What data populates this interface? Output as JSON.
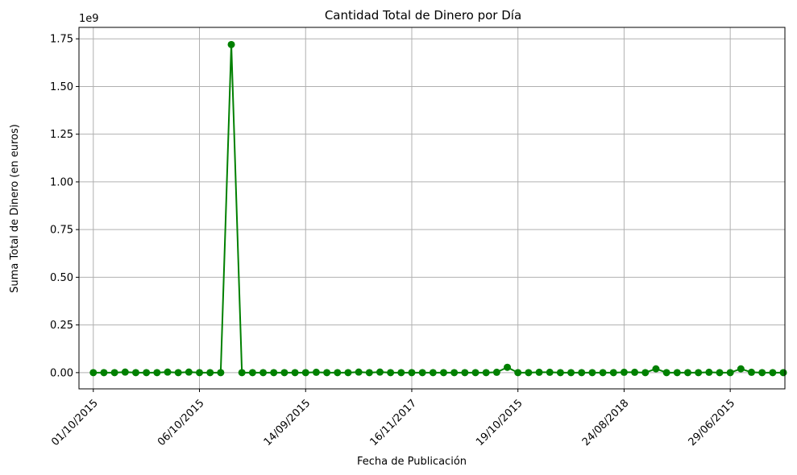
{
  "chart_data": {
    "type": "line",
    "title": "Cantidad Total de Dinero por Día",
    "xlabel": "Fecha de Publicación",
    "ylabel": "Suma Total de Dinero (en euros)",
    "y_multiplier_label": "1e9",
    "ylim": [
      -0.085,
      1.81
    ],
    "yticks": [
      0.0,
      0.25,
      0.5,
      0.75,
      1.0,
      1.25,
      1.5,
      1.75
    ],
    "ytick_labels": [
      "0.00",
      "0.25",
      "0.50",
      "0.75",
      "1.00",
      "1.25",
      "1.50",
      "1.75"
    ],
    "xlim": [
      -1.35,
      65.15
    ],
    "xticks": [
      0,
      10,
      20,
      30,
      40,
      50,
      60
    ],
    "xtick_labels": [
      "01/10/2015",
      "06/10/2015",
      "14/09/2015",
      "16/11/2017",
      "19/10/2015",
      "24/08/2018",
      "29/06/2015"
    ],
    "grid": true,
    "color": "#008000",
    "series": [
      {
        "values": [
          0.0,
          0.0,
          0.0,
          0.003,
          0.0,
          0.0,
          0.0,
          0.003,
          0.0,
          0.003,
          0.0,
          0.0,
          0.0,
          1.72,
          0.0,
          0.0,
          0.0,
          0.0,
          0.0,
          0.0,
          0.0,
          0.002,
          0.0,
          0.0,
          0.0,
          0.003,
          0.0,
          0.003,
          0.0,
          0.0,
          0.0,
          0.0,
          0.0,
          0.0,
          0.0,
          0.0,
          0.0,
          0.0,
          0.002,
          0.028,
          0.0,
          0.0,
          0.002,
          0.002,
          0.0,
          0.0,
          0.0,
          0.0,
          0.0,
          0.0,
          0.002,
          0.002,
          0.0,
          0.02,
          0.0,
          0.0,
          0.0,
          0.0,
          0.002,
          0.0,
          0.0,
          0.02,
          0.002,
          0.0,
          0.0,
          0.0
        ]
      }
    ]
  }
}
